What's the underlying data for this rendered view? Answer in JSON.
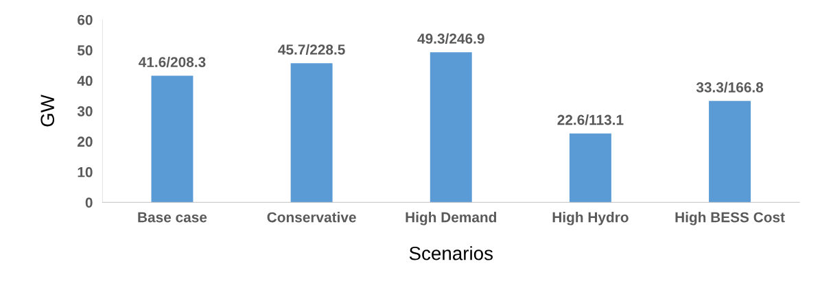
{
  "chart_data": {
    "type": "bar",
    "xlabel": "Scenarios",
    "ylabel": "GW",
    "categories": [
      "Base case",
      "Conservative",
      "High Demand",
      "High Hydro",
      "High BESS Cost"
    ],
    "values": [
      41.6,
      45.7,
      49.3,
      22.6,
      33.3
    ],
    "value_labels": [
      "41.6/208.3",
      "45.7/228.5",
      "49.3/246.9",
      "22.6/113.1",
      "33.3/166.8"
    ],
    "color": "#5b9bd5",
    "ylim": [
      0,
      60
    ],
    "yticks": [
      0,
      10,
      20,
      30,
      40,
      50,
      60
    ],
    "grid": false,
    "legend": false
  }
}
